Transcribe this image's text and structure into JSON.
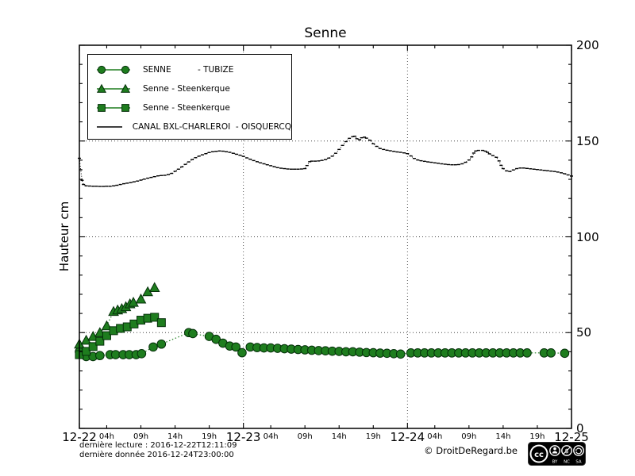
{
  "title": "Senne",
  "y_axis": {
    "label": "Hauteur cm",
    "ticks": [
      0,
      50,
      100,
      150,
      200
    ],
    "minor_step": 10,
    "min": 0,
    "max": 200
  },
  "x_axis": {
    "days": [
      {
        "t": 0,
        "label": "12-22"
      },
      {
        "t": 24,
        "label": "12-23"
      },
      {
        "t": 48,
        "label": "12-24"
      },
      {
        "t": 72,
        "label": "12-25"
      }
    ],
    "hour_offsets": [
      4,
      9,
      14,
      19
    ],
    "hour_labels": [
      "04h",
      "09h",
      "14h",
      "19h"
    ]
  },
  "legend": {
    "items": [
      {
        "label": "SENNE          - TUBIZE",
        "marker": "circle",
        "color": "#1e7d1e"
      },
      {
        "label": "Senne - Steenkerque",
        "marker": "triangle",
        "color": "#1e7d1e"
      },
      {
        "label": "Senne - Steenkerque",
        "marker": "square",
        "color": "#1e7d1e"
      },
      {
        "label": "CANAL BXL-CHARLEROI  - OISQUERCQ",
        "marker": "line",
        "color": "#000000"
      }
    ]
  },
  "footer": {
    "last_reading": "dernière lecture : 2016-12-22T12:11:09",
    "last_data": "dernière donnée  2016-12-24T23:00:00",
    "copyright": "© DroitDeRegard.be"
  },
  "cc_badge": {
    "cc": "cc",
    "by": "BY",
    "nc": "NC",
    "sa": "SA"
  },
  "colors": {
    "series_green": "#1e7d1e",
    "series_edge": "#05300a",
    "canal_black": "#000000",
    "grid": "#444444"
  },
  "chart_data": {
    "type": "line",
    "title": "Senne",
    "xlabel": "",
    "ylabel": "Hauteur cm",
    "ylim": [
      0,
      200
    ],
    "xlim_hours_from_2016_12_22T00": [
      0,
      72
    ],
    "grid": "dotted at y=50,100,150 and day boundaries",
    "legend_position": "upper left",
    "series": [
      {
        "name": "SENNE - TUBIZE",
        "marker": "circle",
        "color": "#1e7d1e",
        "linestyle": "dotted",
        "points": [
          [
            0,
            40
          ],
          [
            1,
            37.5
          ],
          [
            2,
            37.5
          ],
          [
            3,
            38
          ],
          [
            4.5,
            38.5
          ],
          [
            5.3,
            38.5
          ],
          [
            6.4,
            38.5
          ],
          [
            7.3,
            38.5
          ],
          [
            8.3,
            38.5
          ],
          [
            9.1,
            39
          ],
          [
            10.8,
            42.5
          ],
          [
            12,
            44
          ],
          [
            16,
            50
          ],
          [
            16.6,
            49.5
          ],
          [
            19,
            48
          ],
          [
            20,
            46.5
          ],
          [
            21,
            44.5
          ],
          [
            22,
            43
          ],
          [
            22.9,
            42.5
          ],
          [
            23.8,
            39.5
          ],
          [
            25,
            42.5
          ],
          [
            26,
            42.2
          ],
          [
            27,
            42
          ],
          [
            28,
            42
          ],
          [
            29,
            41.8
          ],
          [
            30,
            41.6
          ],
          [
            31,
            41.4
          ],
          [
            32,
            41.2
          ],
          [
            33,
            41
          ],
          [
            34,
            40.8
          ],
          [
            35,
            40.6
          ],
          [
            36,
            40.5
          ],
          [
            37,
            40.3
          ],
          [
            38,
            40.2
          ],
          [
            39,
            40
          ],
          [
            40,
            40
          ],
          [
            41,
            39.8
          ],
          [
            42,
            39.6
          ],
          [
            43,
            39.5
          ],
          [
            44,
            39.3
          ],
          [
            45,
            39.2
          ],
          [
            46,
            39
          ],
          [
            47,
            38.8
          ],
          [
            48.5,
            39.4
          ],
          [
            49.5,
            39.4
          ],
          [
            50.5,
            39.4
          ],
          [
            51.5,
            39.4
          ],
          [
            52.5,
            39.4
          ],
          [
            53.5,
            39.4
          ],
          [
            54.5,
            39.4
          ],
          [
            55.5,
            39.4
          ],
          [
            56.5,
            39.4
          ],
          [
            57.5,
            39.4
          ],
          [
            58.5,
            39.4
          ],
          [
            59.5,
            39.4
          ],
          [
            60.5,
            39.4
          ],
          [
            61.5,
            39.4
          ],
          [
            62.5,
            39.4
          ],
          [
            63.5,
            39.4
          ],
          [
            64.5,
            39.4
          ],
          [
            65.5,
            39.4
          ],
          [
            68,
            39.4
          ],
          [
            69,
            39.4
          ],
          [
            71,
            39.2
          ]
        ]
      },
      {
        "name": "Senne - Steenkerque",
        "marker": "triangle",
        "color": "#1e7d1e",
        "linestyle": "dotted",
        "points": [
          [
            0,
            44
          ],
          [
            1,
            46
          ],
          [
            2,
            48
          ],
          [
            3,
            50
          ],
          [
            4,
            53.5
          ],
          [
            5,
            61
          ],
          [
            5.6,
            61.8
          ],
          [
            6.2,
            62.5
          ],
          [
            6.8,
            63.5
          ],
          [
            7.4,
            65
          ],
          [
            7.9,
            65.8
          ],
          [
            9,
            67.5
          ],
          [
            10,
            71.3
          ],
          [
            11,
            73.5
          ]
        ]
      },
      {
        "name": "Senne - Steenkerque",
        "marker": "square",
        "color": "#1e7d1e",
        "linestyle": "dotted",
        "points": [
          [
            0,
            38.5
          ],
          [
            1,
            40.2
          ],
          [
            2,
            42.7
          ],
          [
            3,
            45.5
          ],
          [
            4,
            48.4
          ],
          [
            5,
            51
          ],
          [
            6,
            52.2
          ],
          [
            7,
            53
          ],
          [
            8,
            54.5
          ],
          [
            9,
            56.5
          ],
          [
            10,
            57.5
          ],
          [
            11,
            58
          ],
          [
            12,
            55.2
          ]
        ]
      },
      {
        "name": "CANAL BXL-CHARLEROI - OISQUERCQ",
        "marker": "dash",
        "color": "#000000",
        "linestyle": "dotted",
        "points": [
          [
            0,
            141
          ],
          [
            0.2,
            135
          ],
          [
            0.4,
            129.5
          ],
          [
            0.6,
            127.3
          ],
          [
            1,
            126.6
          ],
          [
            1.5,
            126.5
          ],
          [
            2,
            126.4
          ],
          [
            2.5,
            126.4
          ],
          [
            3,
            126.3
          ],
          [
            3.5,
            126.3
          ],
          [
            4,
            126.4
          ],
          [
            4.5,
            126.4
          ],
          [
            5,
            126.6
          ],
          [
            5.5,
            126.9
          ],
          [
            6,
            127.3
          ],
          [
            6.5,
            127.7
          ],
          [
            7,
            128
          ],
          [
            7.5,
            128.3
          ],
          [
            8,
            128.7
          ],
          [
            8.5,
            129.1
          ],
          [
            9,
            129.6
          ],
          [
            9.5,
            130.1
          ],
          [
            10,
            130.6
          ],
          [
            10.5,
            131
          ],
          [
            11,
            131.4
          ],
          [
            11.5,
            131.8
          ],
          [
            12,
            132
          ],
          [
            12.5,
            132.1
          ],
          [
            13,
            132.5
          ],
          [
            13.5,
            133.1
          ],
          [
            14,
            134.2
          ],
          [
            14.5,
            135.3
          ],
          [
            15,
            136.5
          ],
          [
            15.5,
            137.8
          ],
          [
            16,
            139.1
          ],
          [
            16.5,
            140.3
          ],
          [
            17,
            141.3
          ],
          [
            17.5,
            142.1
          ],
          [
            18,
            142.8
          ],
          [
            18.5,
            143.4
          ],
          [
            19,
            144
          ],
          [
            19.5,
            144.4
          ],
          [
            20,
            144.6
          ],
          [
            20.5,
            144.8
          ],
          [
            21,
            144.7
          ],
          [
            21.5,
            144.4
          ],
          [
            22,
            144.1
          ],
          [
            22.5,
            143.6
          ],
          [
            23,
            143.1
          ],
          [
            23.5,
            142.6
          ],
          [
            24,
            142
          ],
          [
            24.5,
            141.2
          ],
          [
            25,
            140.5
          ],
          [
            25.5,
            139.8
          ],
          [
            26,
            139.2
          ],
          [
            26.5,
            138.6
          ],
          [
            27,
            138.1
          ],
          [
            27.5,
            137.6
          ],
          [
            28,
            137.1
          ],
          [
            28.5,
            136.6
          ],
          [
            29,
            136.1
          ],
          [
            29.5,
            135.8
          ],
          [
            30,
            135.6
          ],
          [
            30.5,
            135.4
          ],
          [
            31,
            135.3
          ],
          [
            31.5,
            135.3
          ],
          [
            32,
            135.3
          ],
          [
            32.5,
            135.4
          ],
          [
            33,
            135.6
          ],
          [
            33.3,
            137.2
          ],
          [
            33.7,
            139.2
          ],
          [
            34,
            139.5
          ],
          [
            34.5,
            139.5
          ],
          [
            35,
            139.6
          ],
          [
            35.5,
            139.9
          ],
          [
            36,
            140.3
          ],
          [
            36.5,
            141.1
          ],
          [
            37,
            142.1
          ],
          [
            37.5,
            143.6
          ],
          [
            38,
            145.6
          ],
          [
            38.5,
            147.7
          ],
          [
            39,
            149.7
          ],
          [
            39.5,
            151.4
          ],
          [
            40,
            152.3
          ],
          [
            40.3,
            152.5
          ],
          [
            40.6,
            151.2
          ],
          [
            41,
            150.6
          ],
          [
            41.3,
            151.7
          ],
          [
            41.7,
            152
          ],
          [
            42,
            151.5
          ],
          [
            42.5,
            150.4
          ],
          [
            43,
            148.6
          ],
          [
            43.5,
            147.2
          ],
          [
            44,
            146.1
          ],
          [
            44.5,
            145.6
          ],
          [
            45,
            145.2
          ],
          [
            45.5,
            144.9
          ],
          [
            46,
            144.6
          ],
          [
            46.5,
            144.3
          ],
          [
            47,
            144.1
          ],
          [
            47.5,
            143.8
          ],
          [
            48,
            143.4
          ],
          [
            48.5,
            142.2
          ],
          [
            49,
            140.9
          ],
          [
            49.5,
            140.1
          ],
          [
            50,
            139.7
          ],
          [
            50.5,
            139.4
          ],
          [
            51,
            139.1
          ],
          [
            51.5,
            138.9
          ],
          [
            52,
            138.6
          ],
          [
            52.5,
            138.4
          ],
          [
            53,
            138.1
          ],
          [
            53.5,
            137.9
          ],
          [
            54,
            137.7
          ],
          [
            54.5,
            137.6
          ],
          [
            55,
            137.6
          ],
          [
            55.5,
            137.7
          ],
          [
            56,
            138.1
          ],
          [
            56.5,
            138.9
          ],
          [
            57,
            140.1
          ],
          [
            57.4,
            141.7
          ],
          [
            57.7,
            143.7
          ],
          [
            58,
            144.8
          ],
          [
            58.4,
            145.1
          ],
          [
            59,
            145.1
          ],
          [
            59.4,
            144.7
          ],
          [
            59.7,
            144.1
          ],
          [
            60,
            143.3
          ],
          [
            60.5,
            142.4
          ],
          [
            61,
            141.5
          ],
          [
            61.4,
            139.6
          ],
          [
            61.7,
            137.3
          ],
          [
            62,
            135.6
          ],
          [
            62.5,
            134.4
          ],
          [
            63,
            134.1
          ],
          [
            63.5,
            134.9
          ],
          [
            64,
            135.6
          ],
          [
            64.5,
            135.9
          ],
          [
            65,
            135.9
          ],
          [
            65.5,
            135.7
          ],
          [
            66,
            135.5
          ],
          [
            66.5,
            135.3
          ],
          [
            67,
            135.1
          ],
          [
            67.5,
            134.9
          ],
          [
            68,
            134.7
          ],
          [
            68.5,
            134.5
          ],
          [
            69,
            134.3
          ],
          [
            69.5,
            134.1
          ],
          [
            70,
            133.8
          ],
          [
            70.5,
            133.4
          ],
          [
            71,
            132.9
          ],
          [
            71.5,
            132.3
          ],
          [
            72,
            131.7
          ]
        ]
      }
    ]
  }
}
